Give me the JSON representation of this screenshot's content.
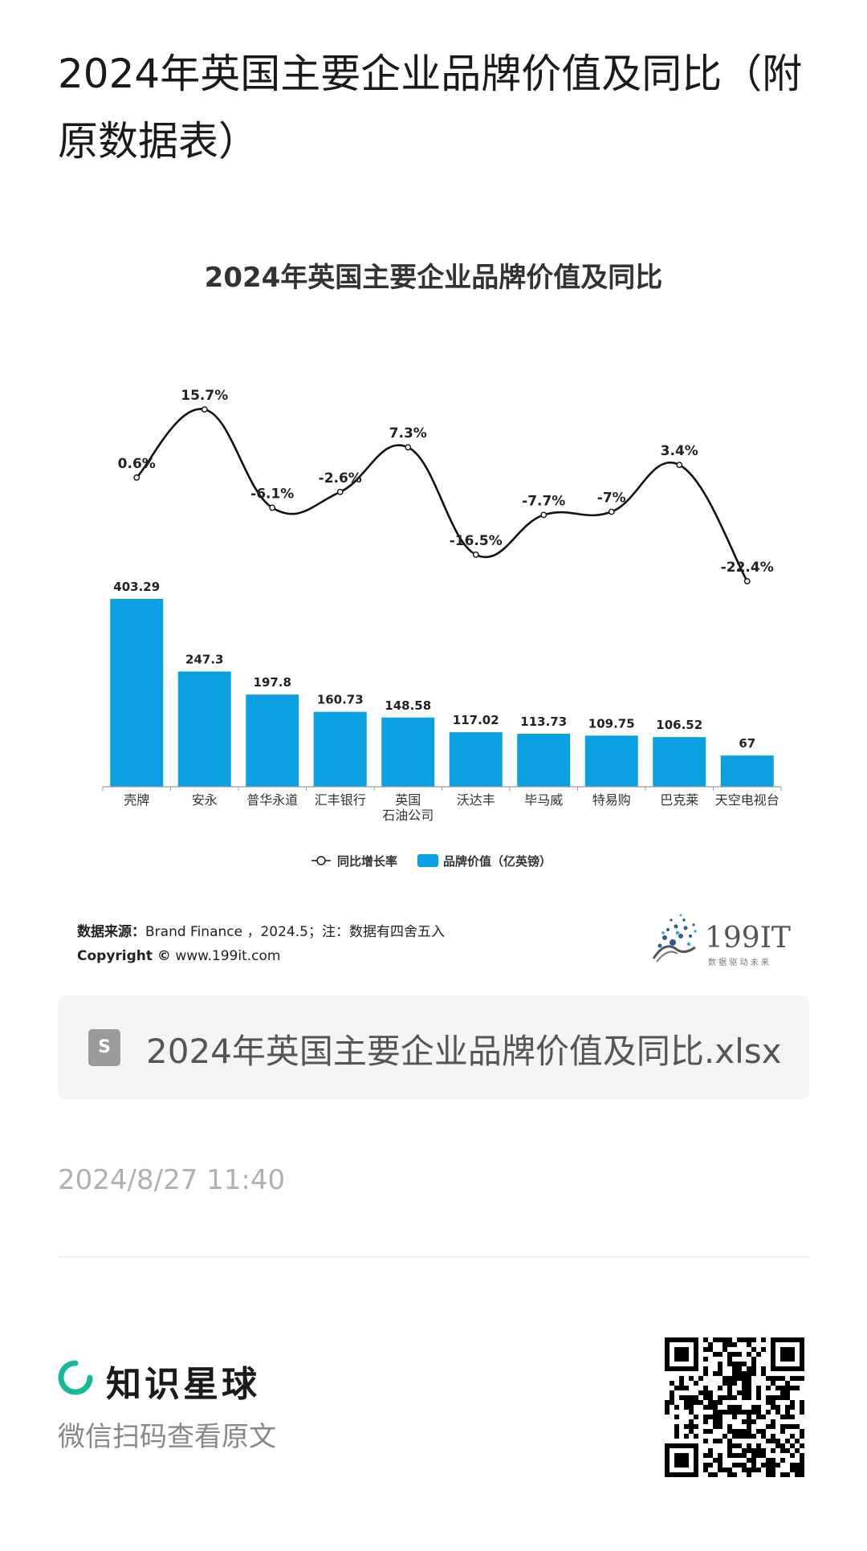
{
  "page_title": "2024年英国主要企业品牌价值及同比（附原数据表）",
  "source_label": "数据来源：",
  "source_text": "Brand Finance ，2024.5；注：数据有四舍五入",
  "copyright_label": "Copyright ©",
  "copyright_text": " www.199it.com",
  "logo": {
    "text": "199IT",
    "tagline": "数 据 驱 动 未 来"
  },
  "file": {
    "icon_letter": "S",
    "name": "2024年英国主要企业品牌价值及同比.xlsx"
  },
  "timestamp": "2024/8/27 11:40",
  "brand": {
    "name": "知识星球",
    "subtitle": "微信扫码查看原文",
    "accent": "#16b998"
  },
  "chart_data": {
    "type": "bar",
    "title": "2024年英国主要企业品牌价值及同比",
    "categories": [
      "壳牌",
      "安永",
      "普华永道",
      "汇丰银行",
      "英国\n石油公司",
      "沃达丰",
      "毕马威",
      "特易购",
      "巴克莱",
      "天空电视台"
    ],
    "series": [
      {
        "name": "品牌价值（亿英镑）",
        "type": "bar",
        "color": "#0aa0e2",
        "values": [
          403.29,
          247.3,
          197.8,
          160.73,
          148.58,
          117.02,
          113.73,
          109.75,
          106.52,
          67
        ],
        "labels": [
          "403.29",
          "247.3",
          "197.8",
          "160.73",
          "148.58",
          "117.02",
          "113.73",
          "109.75",
          "106.52",
          "67"
        ]
      },
      {
        "name": "同比增长率",
        "type": "line",
        "color": "#111111",
        "values": [
          0.6,
          15.7,
          -6.1,
          -2.6,
          7.3,
          -16.5,
          -7.7,
          -7,
          3.4,
          -22.4
        ],
        "labels": [
          "0.6%",
          "15.7%",
          "-6.1%",
          "-2.6%",
          "7.3%",
          "-16.5%",
          "-7.7%",
          "-7%",
          "3.4%",
          "-22.4%"
        ]
      }
    ],
    "legend_position": "bottom",
    "grid": false
  }
}
